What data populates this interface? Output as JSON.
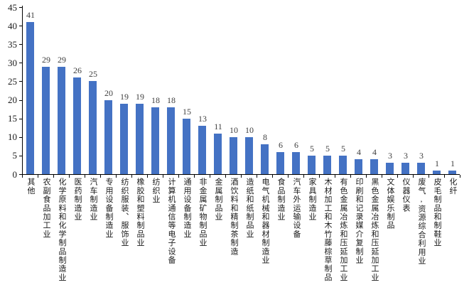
{
  "chart_data": {
    "type": "bar",
    "title": "",
    "xlabel": "",
    "ylabel": "",
    "categories": [
      "其他",
      "农副食品加工业",
      "化学原料和化学制品制造业",
      "医药制造业",
      "汽车制造业",
      "专用设备制造业",
      "纺织服装、服饰业",
      "橡胶和塑料制品业",
      "纺织业",
      "计算机通信等电子设备",
      "通用设备制造业",
      "非金属矿物制品业",
      "金属制品业",
      "酒饮料和精制茶制造",
      "造纸和纸制品业",
      "电气机械和器材制造业",
      "食品制造业",
      "汽车外运输设备",
      "家具制造业",
      "木材加工和木竹藤棕草制品",
      "有色金属冶炼和压延加工业",
      "印刷和记录媒介复制业",
      "黑色金属冶炼和压延加工业",
      "文体娱乐制品",
      "仪器仪表",
      "废气,资源综合利用业",
      "皮毛制品和制鞋业",
      "化纤"
    ],
    "values": [
      41,
      29,
      29,
      26,
      25,
      20,
      19,
      19,
      18,
      18,
      15,
      13,
      11,
      10,
      10,
      8,
      6,
      6,
      5,
      5,
      5,
      4,
      4,
      3,
      3,
      3,
      1,
      1
    ],
    "value_labels_shown": true,
    "ylim": [
      0,
      45
    ],
    "y_ticks": [
      0,
      5,
      10,
      15,
      20,
      25,
      30,
      35,
      40,
      45
    ],
    "grid": "off",
    "legend": "none",
    "x_label_orientation": "vertical",
    "colors": {
      "bar": "#4472C4",
      "axis": "#000000",
      "value_label": "#404040",
      "tick_label": "#1a1a1a",
      "background": "#ffffff"
    }
  }
}
